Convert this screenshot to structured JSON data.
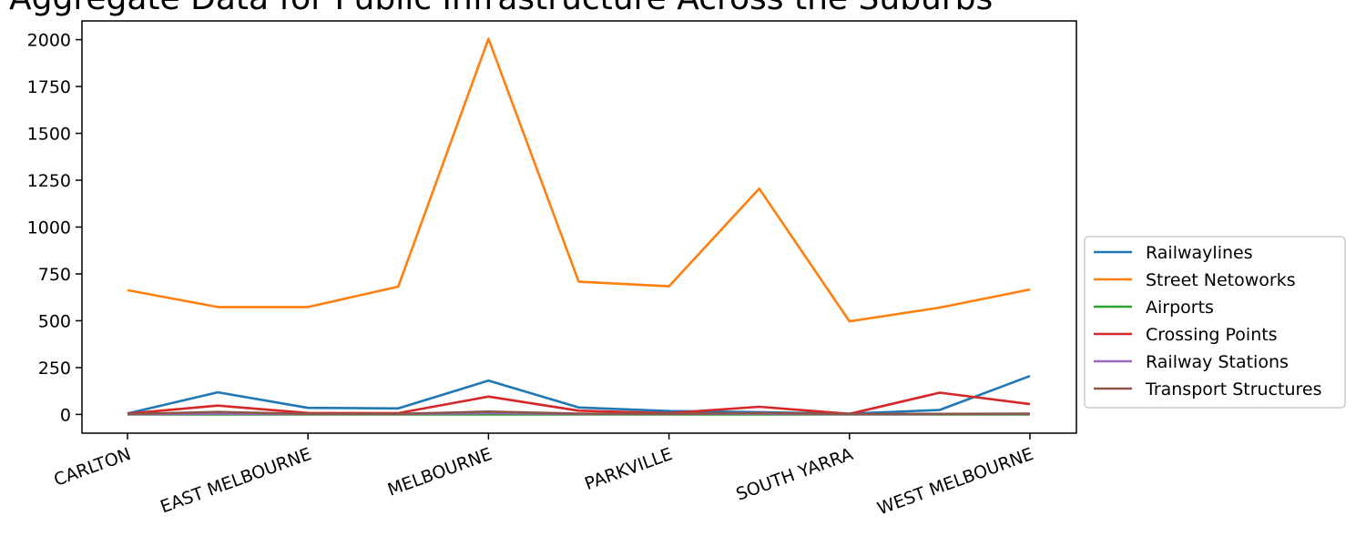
{
  "chart_data": {
    "type": "line",
    "title": "Aggregate Data for Public Infrastructure Across the Suburbs",
    "xlabel": "",
    "ylabel": "",
    "x": [
      "CARLTON",
      "",
      "EAST MELBOURNE",
      "",
      "MELBOURNE",
      "",
      "PARKVILLE",
      "",
      "SOUTH YARRA",
      "",
      "WEST MELBOURNE"
    ],
    "x_tick_labels": [
      "CARLTON",
      "EAST MELBOURNE",
      "MELBOURNE",
      "PARKVILLE",
      "SOUTH YARRA",
      "WEST MELBOURNE"
    ],
    "ylim": [
      -100,
      2100
    ],
    "y_ticks": [
      0,
      250,
      500,
      750,
      1000,
      1250,
      1500,
      1750,
      2000
    ],
    "grid": false,
    "legend_position": "center-right",
    "series": [
      {
        "name": "Railwaylines",
        "color": "#1f77b4",
        "values": [
          5,
          118,
          35,
          32,
          180,
          37,
          18,
          12,
          4,
          24,
          205
        ]
      },
      {
        "name": "Street Netoworks",
        "color": "#ff7f0e",
        "values": [
          663,
          573,
          573,
          682,
          2005,
          708,
          684,
          1205,
          497,
          570,
          667
        ]
      },
      {
        "name": "Airports",
        "color": "#2ca02c",
        "values": [
          0,
          0,
          0,
          0,
          0,
          0,
          0,
          0,
          0,
          0,
          0
        ]
      },
      {
        "name": "Crossing Points",
        "color": "#d62728",
        "values": [
          4,
          47,
          8,
          7,
          95,
          20,
          7,
          41,
          3,
          116,
          55
        ]
      },
      {
        "name": "Railway Stations",
        "color": "#9467bd",
        "values": [
          1,
          4,
          2,
          2,
          7,
          2,
          3,
          4,
          1,
          2,
          3
        ]
      },
      {
        "name": "Transport Structures",
        "color": "#8c564b",
        "values": [
          2,
          13,
          3,
          3,
          15,
          4,
          3,
          8,
          2,
          3,
          4
        ]
      }
    ]
  }
}
